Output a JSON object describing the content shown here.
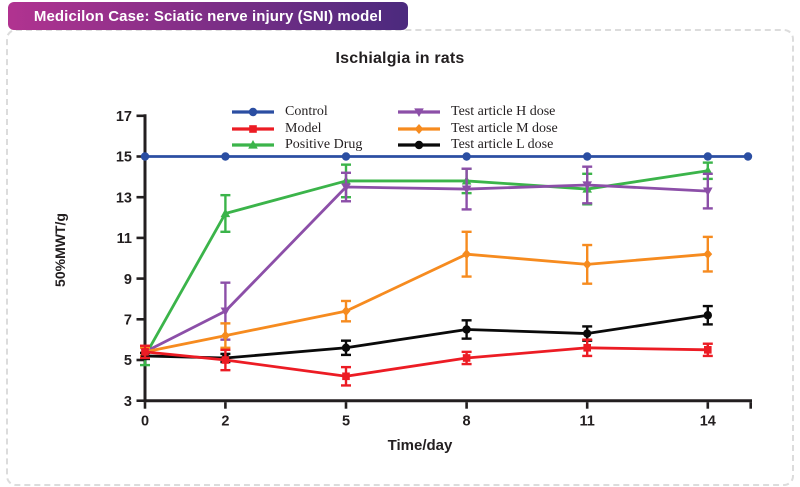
{
  "page": {
    "badge": "Medicilon Case: Sciatic nerve injury (SNI) model",
    "badge_gradient": [
      "#b13390",
      "#4b2a7e"
    ],
    "border_color": "#dcdcdc",
    "background": "#ffffff",
    "text_color": "#231f20"
  },
  "chart_data": {
    "type": "line",
    "title": "Ischialgia in rats",
    "xlabel": "Time/day",
    "ylabel": "50%MWT/g",
    "x": [
      0,
      2,
      5,
      8,
      11,
      14
    ],
    "xlim": [
      0,
      15
    ],
    "ylim": [
      3,
      17
    ],
    "yticks": [
      3,
      5,
      7,
      9,
      11,
      13,
      15,
      17
    ],
    "grid": false,
    "legend_position": "top-inside-two-columns",
    "error_bars": true,
    "series": [
      {
        "name": "Control",
        "color": "#2b4ea2",
        "marker": "circle",
        "values": [
          15,
          15,
          15,
          15,
          15,
          15
        ],
        "errors": [
          0,
          0,
          0,
          0,
          0,
          0
        ],
        "extend_to_right": true
      },
      {
        "name": "Model",
        "color": "#ec1c24",
        "marker": "square",
        "values": [
          5.4,
          5.0,
          4.2,
          5.1,
          5.6,
          5.5
        ],
        "errors": [
          0.3,
          0.5,
          0.45,
          0.3,
          0.4,
          0.3
        ]
      },
      {
        "name": "Positive Drug",
        "color": "#3bb44a",
        "marker": "triangle-up",
        "values": [
          5.2,
          12.2,
          13.8,
          13.8,
          13.4,
          14.3
        ],
        "errors": [
          0.45,
          0.9,
          0.8,
          0.6,
          0.75,
          0.4
        ]
      },
      {
        "name": "Test article H dose",
        "color": "#8c4fa8",
        "marker": "triangle-down",
        "values": [
          5.4,
          7.4,
          13.5,
          13.4,
          13.6,
          13.3
        ],
        "errors": [
          0.2,
          1.4,
          0.7,
          1.0,
          0.9,
          0.85
        ]
      },
      {
        "name": "Test article M dose",
        "color": "#f68b1f",
        "marker": "diamond",
        "values": [
          5.4,
          6.2,
          7.4,
          10.2,
          9.7,
          10.2
        ],
        "errors": [
          0.2,
          0.6,
          0.5,
          1.1,
          0.95,
          0.85
        ]
      },
      {
        "name": "Test article L dose",
        "color": "#0a0a0a",
        "marker": "circle",
        "values": [
          5.2,
          5.1,
          5.6,
          6.5,
          6.3,
          7.2
        ],
        "errors": [
          0.15,
          0.2,
          0.35,
          0.45,
          0.35,
          0.45
        ]
      }
    ]
  }
}
